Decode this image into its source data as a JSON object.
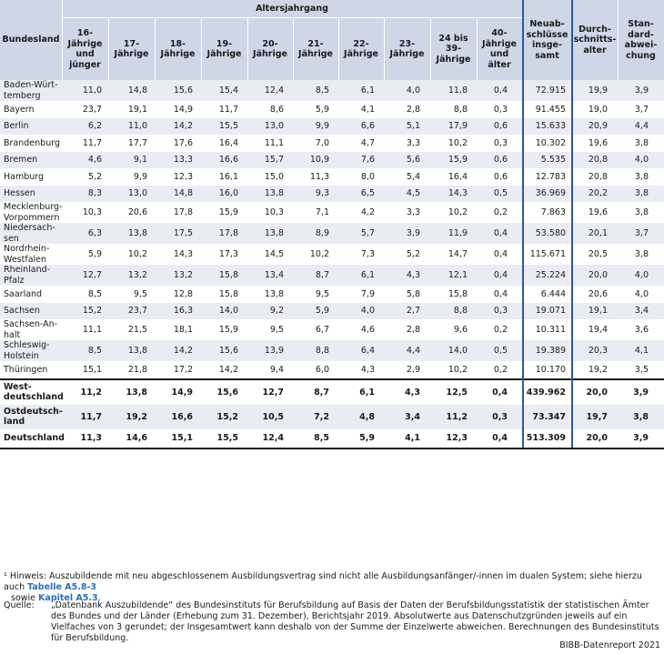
{
  "header": {
    "bundesland": "Bundesland",
    "altersjahrgang": "Altersjahrgang",
    "ages": [
      "16-\nJährige\nund\njünger",
      "17-\nJährige",
      "18-\nJährige",
      "19-\nJährige",
      "20-\nJährige",
      "21-\nJährige",
      "22-\nJährige",
      "23-\nJährige",
      "24 bis\n39-\nJährige",
      "40-\nJährige\nund\nälter"
    ],
    "neuabschluesse": "Neuab-\nschlüsse\ninsge-\nsamt",
    "durchschnittsalter": "Durch-\nschnitts-\nalter",
    "standardabweichung": "Stan-\ndard-\nabwei-\nchung"
  },
  "rows": [
    {
      "name": "Baden-Würt-\ntemberg",
      "values": [
        "11,0",
        "14,8",
        "15,6",
        "15,4",
        "12,4",
        "8,5",
        "6,1",
        "4,0",
        "11,8",
        "0,4"
      ],
      "total": "72.915",
      "avg": "19,9",
      "sd": "3,9"
    },
    {
      "name": "Bayern",
      "values": [
        "23,7",
        "19,1",
        "14,9",
        "11,7",
        "8,6",
        "5,9",
        "4,1",
        "2,8",
        "8,8",
        "0,3"
      ],
      "total": "91.455",
      "avg": "19,0",
      "sd": "3,7"
    },
    {
      "name": "Berlin",
      "values": [
        "6,2",
        "11,0",
        "14,2",
        "15,5",
        "13,0",
        "9,9",
        "6,6",
        "5,1",
        "17,9",
        "0,6"
      ],
      "total": "15.633",
      "avg": "20,9",
      "sd": "4,4"
    },
    {
      "name": "Brandenburg",
      "values": [
        "11,7",
        "17,7",
        "17,6",
        "16,4",
        "11,1",
        "7,0",
        "4,7",
        "3,3",
        "10,2",
        "0,3"
      ],
      "total": "10.302",
      "avg": "19,6",
      "sd": "3,8"
    },
    {
      "name": "Bremen",
      "values": [
        "4,6",
        "9,1",
        "13,3",
        "16,6",
        "15,7",
        "10,9",
        "7,6",
        "5,6",
        "15,9",
        "0,6"
      ],
      "total": "5.535",
      "avg": "20,8",
      "sd": "4,0"
    },
    {
      "name": "Hamburg",
      "values": [
        "5,2",
        "9,9",
        "12,3",
        "16,1",
        "15,0",
        "11,3",
        "8,0",
        "5,4",
        "16,4",
        "0,6"
      ],
      "total": "12.783",
      "avg": "20,8",
      "sd": "3,8"
    },
    {
      "name": "Hessen",
      "values": [
        "8,3",
        "13,0",
        "14,8",
        "16,0",
        "13,8",
        "9,3",
        "6,5",
        "4,5",
        "14,3",
        "0,5"
      ],
      "total": "36.969",
      "avg": "20,2",
      "sd": "3,8"
    },
    {
      "name": "Mecklenburg-\nVorpommern",
      "values": [
        "10,3",
        "20,6",
        "17,8",
        "15,9",
        "10,3",
        "7,1",
        "4,2",
        "3,3",
        "10,2",
        "0,2"
      ],
      "total": "7.863",
      "avg": "19,6",
      "sd": "3,8"
    },
    {
      "name": "Niedersach-\nsen",
      "values": [
        "6,3",
        "13,8",
        "17,5",
        "17,8",
        "13,8",
        "8,9",
        "5,7",
        "3,9",
        "11,9",
        "0,4"
      ],
      "total": "53.580",
      "avg": "20,1",
      "sd": "3,7"
    },
    {
      "name": "Nordrhein-\nWestfalen",
      "values": [
        "5,9",
        "10,2",
        "14,3",
        "17,3",
        "14,5",
        "10,2",
        "7,3",
        "5,2",
        "14,7",
        "0,4"
      ],
      "total": "115.671",
      "avg": "20,5",
      "sd": "3,8"
    },
    {
      "name": "Rheinland-\nPfalz",
      "values": [
        "12,7",
        "13,2",
        "13,2",
        "15,8",
        "13,4",
        "8,7",
        "6,1",
        "4,3",
        "12,1",
        "0,4"
      ],
      "total": "25.224",
      "avg": "20,0",
      "sd": "4,0"
    },
    {
      "name": "Saarland",
      "values": [
        "8,5",
        "9,5",
        "12,8",
        "15,8",
        "13,8",
        "9,5",
        "7,9",
        "5,8",
        "15,8",
        "0,4"
      ],
      "total": "6.444",
      "avg": "20,6",
      "sd": "4,0"
    },
    {
      "name": "Sachsen",
      "values": [
        "15,2",
        "23,7",
        "16,3",
        "14,0",
        "9,2",
        "5,9",
        "4,0",
        "2,7",
        "8,8",
        "0,3"
      ],
      "total": "19.071",
      "avg": "19,1",
      "sd": "3,4"
    },
    {
      "name": "Sachsen-An-\nhalt",
      "values": [
        "11,1",
        "21,5",
        "18,1",
        "15,9",
        "9,5",
        "6,7",
        "4,6",
        "2,8",
        "9,6",
        "0,2"
      ],
      "total": "10.311",
      "avg": "19,4",
      "sd": "3,6"
    },
    {
      "name": "Schleswig-\nHolstein",
      "values": [
        "8,5",
        "13,8",
        "14,2",
        "15,6",
        "13,9",
        "8,8",
        "6,4",
        "4,4",
        "14,0",
        "0,5"
      ],
      "total": "19.389",
      "avg": "20,3",
      "sd": "4,1"
    },
    {
      "name": "Thüringen",
      "values": [
        "15,1",
        "21,8",
        "17,2",
        "14,2",
        "9,4",
        "6,0",
        "4,3",
        "2,9",
        "10,2",
        "0,2"
      ],
      "total": "10.170",
      "avg": "19,2",
      "sd": "3,5"
    }
  ],
  "summary": [
    {
      "name": "West-\ndeutschland",
      "values": [
        "11,2",
        "13,8",
        "14,9",
        "15,6",
        "12,7",
        "8,7",
        "6,1",
        "4,3",
        "12,5",
        "0,4"
      ],
      "total": "439.962",
      "avg": "20,0",
      "sd": "3,9"
    },
    {
      "name": "Ostdeutsch-\nland",
      "values": [
        "11,7",
        "19,2",
        "16,6",
        "15,2",
        "10,5",
        "7,2",
        "4,8",
        "3,4",
        "11,2",
        "0,3"
      ],
      "total": "73.347",
      "avg": "19,7",
      "sd": "3,8"
    },
    {
      "name": "Deutschland",
      "values": [
        "11,3",
        "14,6",
        "15,1",
        "15,5",
        "12,4",
        "8,5",
        "5,9",
        "4,1",
        "12,3",
        "0,4"
      ],
      "total": "513.309",
      "avg": "20,0",
      "sd": "3,9"
    }
  ],
  "footnote": {
    "text": "¹ Hinweis: Auszubildende mit neu abgeschlossenem Ausbildungsvertrag sind nicht alle Ausbildungsanfänger/-innen im dualen System; siehe hierzu auch ",
    "link1": "Tabelle A5.8-3",
    "mid": "sowie ",
    "link2": "Kapitel A5.3",
    "end": "."
  },
  "source": {
    "label": "Quelle:",
    "text": "„Datenbank Auszubildende“ des Bundesinstituts für Berufsbildung auf Basis der Daten der Berufsbildungsstatistik der statistischen Ämter des Bundes und der Länder (Erhebung zum 31. Dezember), Berichtsjahr 2019. Absolutwerte aus Datenschutzgründen jeweils auf ein Vielfaches von 3 gerundet; der Insgesamtwert kann deshalb von der Summe der Einzelwerte abweichen. Berechnungen des Bundesinstituts für Berufsbildung."
  },
  "credit": "BIBB-Datenreport 2021"
}
